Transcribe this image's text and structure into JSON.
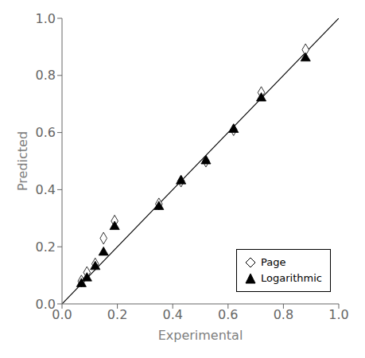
{
  "chart_data": {
    "type": "scatter",
    "xlabel": "Experimental",
    "ylabel": "Predicted",
    "xlim": [
      0.0,
      1.0
    ],
    "ylim": [
      0.0,
      1.0
    ],
    "xticks": [
      {
        "value": 0.0,
        "label": "0.0"
      },
      0.2,
      0.4,
      0.6,
      0.8,
      {
        "value": 1.0,
        "label": "1.0"
      }
    ],
    "yticks": [
      {
        "value": 0.0,
        "label": "0.0"
      },
      0.2,
      0.4,
      0.6,
      0.8,
      {
        "value": 1.0,
        "label": "1.0"
      }
    ],
    "grid": false,
    "legend": "lower right",
    "reference_line": {
      "x": [
        0.0,
        1.0
      ],
      "y": [
        0.0,
        1.0
      ],
      "color": "#000000"
    },
    "series": [
      {
        "name": "Page",
        "color": "#000000",
        "marker": "open_diamond",
        "x": [
          0.07,
          0.09,
          0.12,
          0.15,
          0.19,
          0.35,
          0.43,
          0.52,
          0.62,
          0.72,
          0.88
        ],
        "values": [
          0.08,
          0.11,
          0.14,
          0.23,
          0.29,
          0.35,
          0.43,
          0.5,
          0.61,
          0.74,
          0.89
        ]
      },
      {
        "name": "Logarithmic",
        "color": "#000000",
        "marker": "triangle",
        "x": [
          0.07,
          0.09,
          0.12,
          0.15,
          0.19,
          0.35,
          0.43,
          0.52,
          0.62,
          0.72,
          0.88
        ],
        "values": [
          0.07,
          0.09,
          0.13,
          0.18,
          0.27,
          0.34,
          0.43,
          0.5,
          0.61,
          0.72,
          0.86
        ]
      }
    ]
  }
}
